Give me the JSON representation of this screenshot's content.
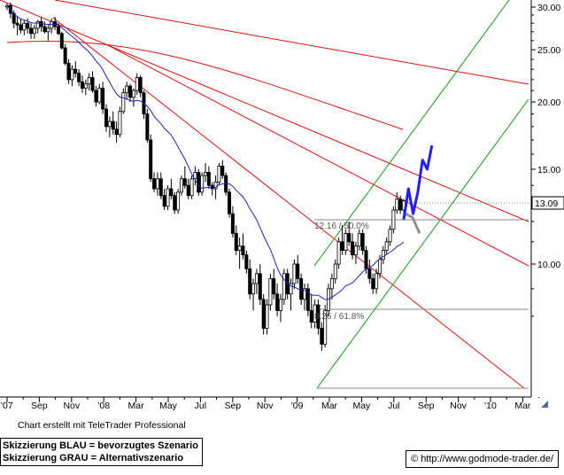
{
  "chart_data": {
    "type": "candlestick",
    "title": "",
    "xlabel": "",
    "ylabel": "",
    "y_scale": "log",
    "ylim": [
      7.0,
      31.0
    ],
    "x_tick_labels": [
      "'07",
      "Sep",
      "Nov",
      "'08",
      "Mar",
      "May",
      "Jul",
      "Sep",
      "Nov",
      "'09",
      "Mar",
      "May",
      "Jul",
      "Sep",
      "Nov",
      "'10",
      "Mar"
    ],
    "y_tick_labels": [
      "30.00",
      "25.00",
      "20.00",
      "15.00",
      "10.00"
    ],
    "y_ticks": [
      30,
      25,
      20,
      15,
      10
    ],
    "current_price_label": "13.09",
    "current_price": 13.09,
    "grid": false,
    "candles": [
      [
        30.0,
        30.5,
        29.6,
        30.2
      ],
      [
        30.2,
        30.6,
        28.6,
        29.2
      ],
      [
        29.2,
        29.6,
        27.4,
        28.0
      ],
      [
        28.0,
        28.8,
        26.6,
        27.8
      ],
      [
        27.8,
        28.6,
        26.8,
        27.2
      ],
      [
        27.2,
        28.4,
        26.6,
        28.0
      ],
      [
        28.0,
        28.6,
        26.8,
        27.4
      ],
      [
        27.4,
        28.0,
        26.2,
        26.8
      ],
      [
        26.8,
        27.8,
        26.2,
        27.4
      ],
      [
        27.4,
        28.4,
        26.8,
        28.2
      ],
      [
        28.2,
        28.8,
        27.0,
        27.6
      ],
      [
        27.6,
        28.2,
        26.8,
        27.0
      ],
      [
        27.0,
        27.8,
        26.0,
        27.4
      ],
      [
        27.4,
        28.6,
        26.8,
        28.2
      ],
      [
        28.2,
        28.8,
        27.2,
        27.6
      ],
      [
        27.6,
        28.0,
        26.6,
        26.8
      ],
      [
        26.8,
        27.0,
        25.0,
        25.2
      ],
      [
        25.2,
        25.6,
        23.4,
        23.6
      ],
      [
        23.6,
        24.0,
        21.6,
        22.0
      ],
      [
        22.0,
        23.4,
        21.4,
        23.0
      ],
      [
        23.0,
        23.8,
        22.2,
        22.6
      ],
      [
        22.6,
        23.0,
        21.4,
        21.8
      ],
      [
        21.8,
        22.4,
        20.8,
        21.2
      ],
      [
        21.2,
        22.0,
        20.6,
        21.6
      ],
      [
        21.6,
        22.6,
        21.0,
        22.2
      ],
      [
        22.2,
        22.8,
        20.8,
        21.0
      ],
      [
        21.0,
        21.4,
        19.6,
        20.0
      ],
      [
        20.0,
        21.6,
        19.8,
        21.2
      ],
      [
        21.2,
        21.8,
        19.0,
        19.4
      ],
      [
        19.4,
        19.8,
        17.6,
        18.0
      ],
      [
        18.0,
        18.8,
        17.2,
        18.4
      ],
      [
        18.4,
        19.2,
        17.4,
        17.8
      ],
      [
        17.8,
        18.4,
        16.8,
        17.4
      ],
      [
        17.4,
        19.6,
        17.2,
        19.2
      ],
      [
        19.2,
        21.2,
        19.0,
        20.8
      ],
      [
        20.8,
        21.8,
        20.2,
        21.4
      ],
      [
        21.4,
        21.6,
        20.0,
        20.4
      ],
      [
        20.4,
        21.2,
        19.6,
        21.0
      ],
      [
        21.0,
        22.6,
        20.6,
        22.2
      ],
      [
        22.2,
        22.4,
        20.4,
        20.8
      ],
      [
        20.8,
        21.0,
        18.6,
        19.0
      ],
      [
        19.0,
        19.4,
        16.8,
        17.0
      ],
      [
        17.0,
        17.4,
        14.2,
        14.4
      ],
      [
        14.4,
        14.8,
        13.6,
        13.8
      ],
      [
        13.8,
        14.8,
        13.4,
        14.4
      ],
      [
        14.4,
        14.8,
        13.2,
        13.4
      ],
      [
        13.4,
        13.8,
        12.6,
        12.8
      ],
      [
        12.8,
        14.0,
        12.6,
        13.8
      ],
      [
        13.8,
        14.4,
        13.2,
        13.4
      ],
      [
        13.4,
        13.6,
        12.4,
        12.6
      ],
      [
        12.6,
        13.8,
        12.4,
        13.6
      ],
      [
        13.6,
        14.6,
        13.4,
        14.4
      ],
      [
        14.4,
        15.2,
        13.8,
        14.0
      ],
      [
        14.0,
        14.4,
        13.2,
        13.4
      ],
      [
        13.4,
        14.6,
        13.2,
        14.4
      ],
      [
        14.4,
        15.2,
        14.0,
        14.8
      ],
      [
        14.8,
        15.0,
        13.4,
        13.6
      ],
      [
        13.6,
        14.8,
        13.4,
        14.6
      ],
      [
        14.6,
        15.4,
        14.2,
        14.8
      ],
      [
        14.8,
        15.2,
        13.8,
        14.0
      ],
      [
        14.0,
        14.2,
        13.4,
        13.8
      ],
      [
        13.8,
        14.6,
        13.2,
        14.2
      ],
      [
        14.2,
        15.4,
        14.0,
        15.2
      ],
      [
        15.2,
        15.6,
        14.4,
        14.6
      ],
      [
        14.6,
        14.8,
        13.4,
        13.6
      ],
      [
        13.6,
        13.8,
        12.2,
        12.4
      ],
      [
        12.4,
        12.8,
        11.2,
        11.4
      ],
      [
        11.4,
        11.8,
        10.4,
        10.6
      ],
      [
        10.6,
        11.2,
        9.8,
        10.8
      ],
      [
        10.8,
        11.4,
        10.2,
        10.4
      ],
      [
        10.4,
        10.6,
        9.6,
        9.8
      ],
      [
        9.8,
        10.2,
        8.6,
        8.8
      ],
      [
        8.8,
        9.4,
        8.2,
        9.2
      ],
      [
        9.2,
        9.8,
        8.8,
        9.6
      ],
      [
        9.6,
        10.0,
        8.4,
        8.6
      ],
      [
        8.6,
        8.8,
        7.4,
        7.6
      ],
      [
        7.6,
        8.6,
        7.4,
        8.4
      ],
      [
        8.4,
        9.6,
        8.2,
        9.4
      ],
      [
        9.4,
        9.8,
        8.6,
        8.8
      ],
      [
        8.8,
        9.2,
        8.0,
        8.2
      ],
      [
        8.2,
        8.8,
        7.8,
        8.6
      ],
      [
        8.6,
        9.8,
        8.4,
        9.6
      ],
      [
        9.6,
        9.8,
        8.6,
        8.8
      ],
      [
        8.8,
        9.4,
        8.2,
        9.2
      ],
      [
        9.2,
        10.2,
        9.0,
        10.0
      ],
      [
        10.0,
        10.4,
        9.2,
        9.4
      ],
      [
        9.4,
        9.6,
        8.4,
        8.6
      ],
      [
        8.6,
        9.2,
        8.2,
        9.0
      ],
      [
        9.0,
        9.2,
        8.0,
        8.2
      ],
      [
        8.2,
        8.8,
        7.6,
        7.8
      ],
      [
        7.8,
        8.6,
        7.6,
        8.4
      ],
      [
        8.4,
        8.6,
        7.4,
        7.6
      ],
      [
        7.6,
        7.8,
        6.9,
        7.1
      ],
      [
        7.1,
        8.4,
        7.0,
        8.2
      ],
      [
        8.2,
        9.2,
        8.0,
        9.0
      ],
      [
        9.0,
        9.6,
        8.6,
        9.4
      ],
      [
        9.4,
        10.2,
        9.2,
        10.0
      ],
      [
        10.0,
        11.2,
        9.8,
        11.0
      ],
      [
        11.0,
        11.8,
        10.4,
        10.6
      ],
      [
        10.6,
        11.6,
        10.4,
        11.4
      ],
      [
        11.4,
        12.0,
        10.8,
        11.0
      ],
      [
        11.0,
        11.4,
        10.2,
        10.4
      ],
      [
        10.4,
        11.0,
        10.0,
        10.8
      ],
      [
        10.8,
        11.6,
        10.6,
        11.4
      ],
      [
        11.4,
        11.6,
        10.4,
        10.6
      ],
      [
        10.6,
        10.8,
        9.6,
        9.8
      ],
      [
        9.8,
        10.2,
        9.2,
        9.4
      ],
      [
        9.4,
        9.6,
        8.8,
        9.0
      ],
      [
        9.0,
        9.8,
        8.8,
        9.6
      ],
      [
        9.6,
        10.4,
        9.4,
        10.2
      ],
      [
        10.2,
        10.8,
        10.0,
        10.6
      ],
      [
        10.6,
        11.2,
        10.4,
        11.0
      ],
      [
        11.0,
        11.8,
        10.8,
        11.6
      ],
      [
        11.6,
        12.8,
        11.4,
        12.6
      ],
      [
        12.6,
        13.6,
        12.4,
        13.2
      ],
      [
        13.2,
        13.4,
        12.4,
        12.6
      ],
      [
        12.6,
        13.2,
        12.2,
        13.1
      ]
    ],
    "annotations": [
      {
        "text": "12.16 / 50.0%",
        "value": 12.16
      },
      {
        "text": "8.26 / 61.8%",
        "value": 8.26
      }
    ],
    "scenarios": [
      {
        "name": "blue",
        "color": "#1e1eff",
        "points": [
          12.1,
          13.8,
          12.4,
          13.6,
          15.6,
          15.0,
          16.6
        ]
      },
      {
        "name": "gray",
        "color": "#909090",
        "points": [
          12.4,
          12.2,
          11.4
        ]
      }
    ],
    "colors": {
      "candle_up": "#ffffff",
      "candle_down": "#000000",
      "moving_average": "#2020c0",
      "resistance_lines": "#dd1010",
      "channel": "#129b12",
      "levels": "#8a8a8a",
      "scenario_blue": "#1e1eff",
      "scenario_gray": "#909090"
    }
  },
  "footer": {
    "credit": "Chart erstellt mit TeleTrader Professional",
    "legend_blue": "Skizzierung BLAU = bevorzugtes Szenario",
    "legend_gray": "Skizzierung GRAU = Alternativszenario",
    "copyright": "© http://www.godmode-trader.de/"
  }
}
